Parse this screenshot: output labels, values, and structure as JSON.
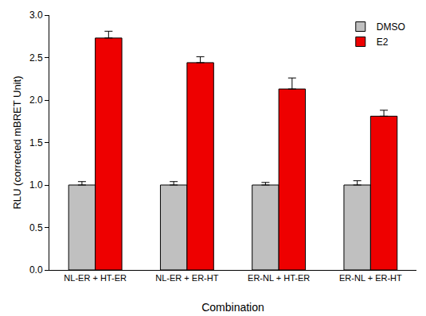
{
  "chart_data": {
    "type": "bar",
    "x_label": "Combination",
    "y_label": "RLU (corrected mBRET Unit)",
    "categories": [
      "NL-ER + HT-ER",
      "NL-ER + ER-HT",
      "ER-NL + HT-ER",
      "ER-NL + ER-HT"
    ],
    "series": [
      {
        "name": "DMSO",
        "color": "#c0c0c0",
        "values": [
          1.0,
          1.0,
          1.0,
          1.0
        ],
        "errors": [
          0.04,
          0.04,
          0.03,
          0.05
        ]
      },
      {
        "name": "E2",
        "color": "#ee0000",
        "values": [
          2.73,
          2.44,
          2.13,
          1.81
        ],
        "errors": [
          0.08,
          0.07,
          0.13,
          0.07
        ]
      }
    ],
    "ylim": [
      0,
      3.0
    ],
    "yticks": [
      {
        "value": 0,
        "label": "0.0"
      },
      {
        "value": 0.5,
        "label": "0.5"
      },
      {
        "value": 1.0,
        "label": "1.0"
      },
      {
        "value": 1.5,
        "label": "1.5"
      },
      {
        "value": 2.0,
        "label": "2.0"
      },
      {
        "value": 2.5,
        "label": "2.5"
      },
      {
        "value": 3.0,
        "label": "3.0"
      }
    ],
    "grid": false,
    "legend": "top right"
  }
}
